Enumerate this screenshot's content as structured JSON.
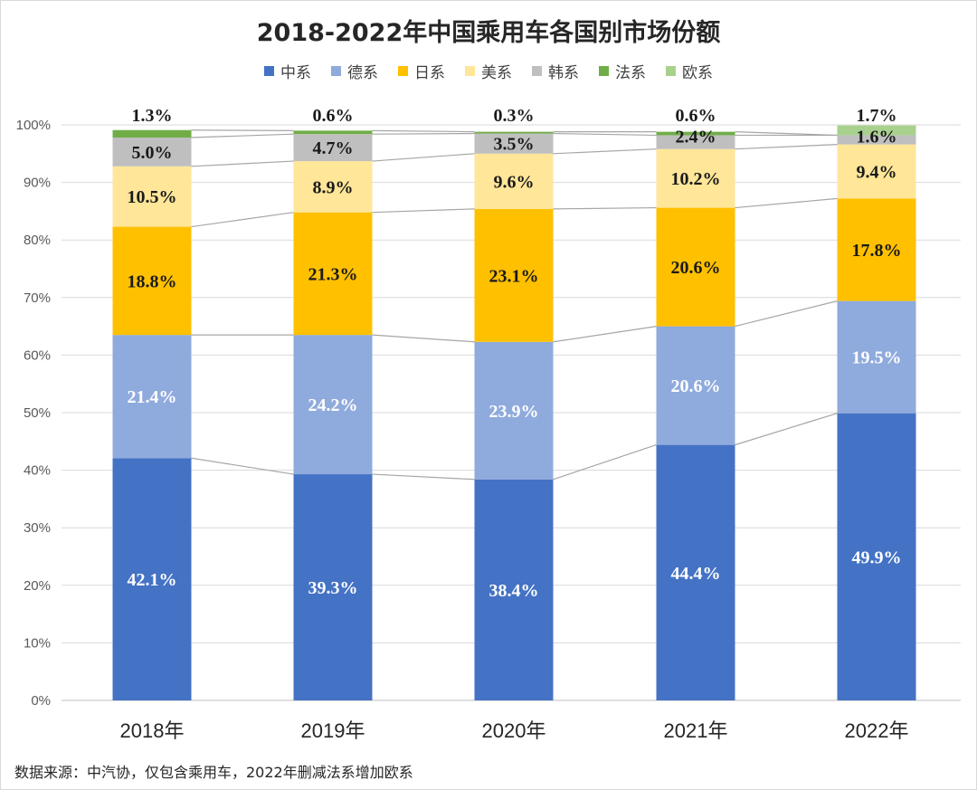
{
  "chart_data": {
    "type": "bar",
    "stacked": true,
    "title": "2018-2022年中国乘用车各国别市场份额",
    "categories": [
      "2018年",
      "2019年",
      "2020年",
      "2021年",
      "2022年"
    ],
    "y_ticks": [
      "0%",
      "10%",
      "20%",
      "30%",
      "40%",
      "50%",
      "60%",
      "70%",
      "80%",
      "90%",
      "100%"
    ],
    "ylim": [
      0,
      100
    ],
    "series": [
      {
        "name": "中系",
        "color": "#4472C4",
        "label_color": "#ffffff",
        "values": [
          42.1,
          39.3,
          38.4,
          44.4,
          49.9
        ],
        "labels": [
          "42.1%",
          "39.3%",
          "38.4%",
          "44.4%",
          "49.9%"
        ]
      },
      {
        "name": "德系",
        "color": "#8FAADC",
        "label_color": "#ffffff",
        "values": [
          21.4,
          24.2,
          23.9,
          20.6,
          19.5
        ],
        "labels": [
          "21.4%",
          "24.2%",
          "23.9%",
          "20.6%",
          "19.5%"
        ]
      },
      {
        "name": "日系",
        "color": "#FFC000",
        "label_color": "#1a1a1a",
        "values": [
          18.8,
          21.3,
          23.1,
          20.6,
          17.8
        ],
        "labels": [
          "18.8%",
          "21.3%",
          "23.1%",
          "20.6%",
          "17.8%"
        ]
      },
      {
        "name": "美系",
        "color": "#FFE699",
        "label_color": "#1a1a1a",
        "values": [
          10.5,
          8.9,
          9.6,
          10.2,
          9.4
        ],
        "labels": [
          "10.5%",
          "8.9%",
          "9.6%",
          "10.2%",
          "9.4%"
        ]
      },
      {
        "name": "韩系",
        "color": "#BFBFBF",
        "label_color": "#1a1a1a",
        "values": [
          5.0,
          4.7,
          3.5,
          2.4,
          1.6
        ],
        "labels": [
          "5.0%",
          "4.7%",
          "3.5%",
          "2.4%",
          "1.6%"
        ]
      },
      {
        "name": "法系",
        "color": "#70AD47",
        "label_color": "#1a1a1a",
        "values": [
          1.3,
          0.6,
          0.3,
          0.6,
          0
        ],
        "labels": [
          "1.3%",
          "0.6%",
          "0.3%",
          "0.6%",
          ""
        ]
      },
      {
        "name": "欧系",
        "color": "#A9D18E",
        "label_color": "#1a1a1a",
        "values": [
          0,
          0,
          0,
          0,
          1.7
        ],
        "labels": [
          "",
          "",
          "",
          "",
          "1.7%"
        ]
      }
    ],
    "legend_position": "top",
    "grid": true
  },
  "source_note": "数据来源：中汽协，仅包含乘用车，2022年删减法系增加欧系"
}
